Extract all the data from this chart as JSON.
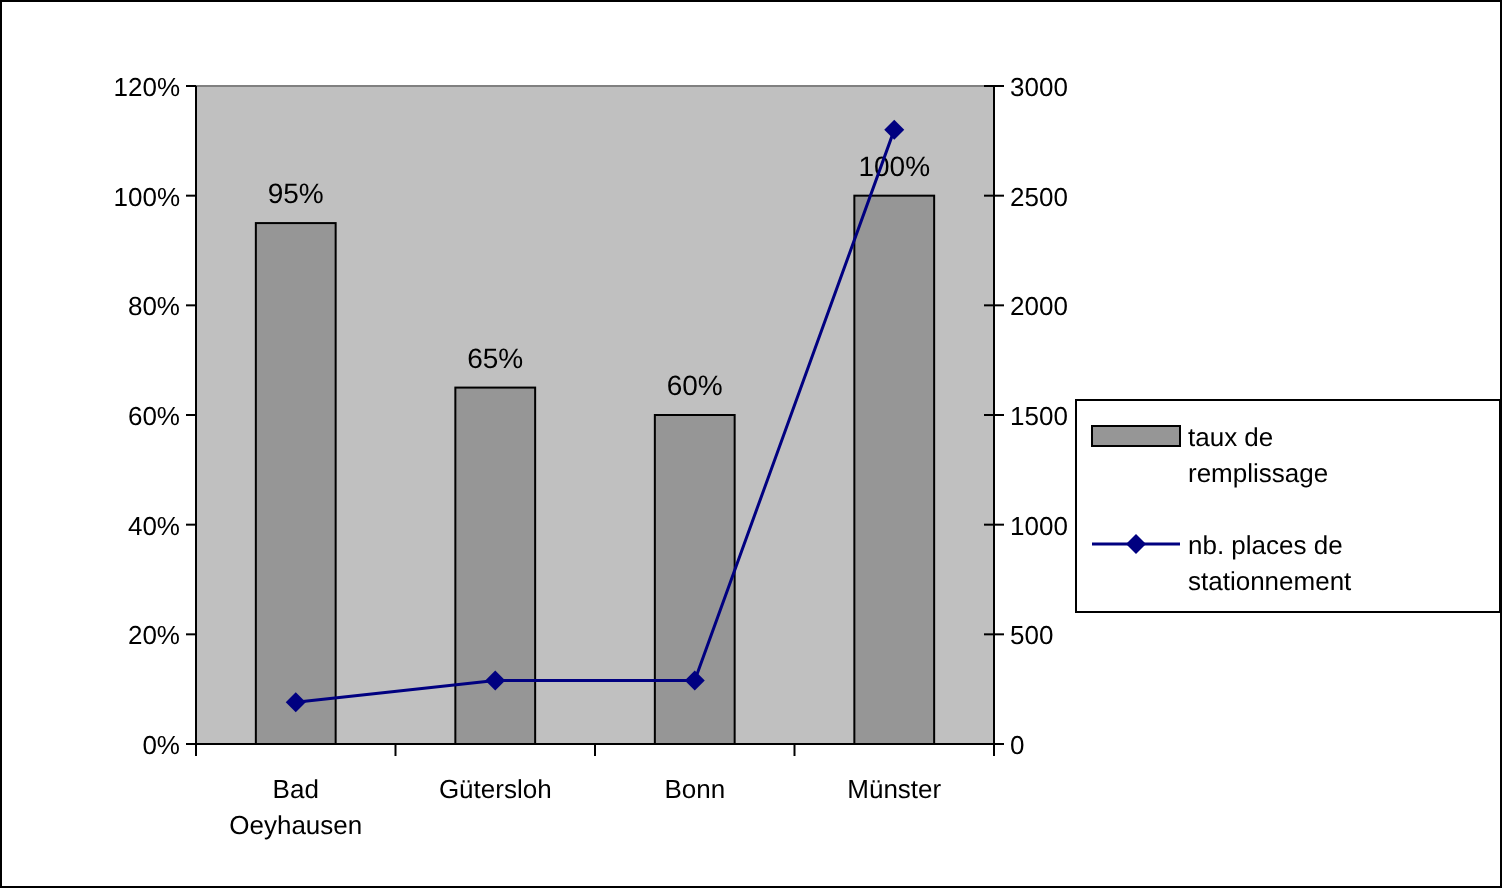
{
  "chart_data": {
    "type": "bar",
    "categories": [
      "Bad Oeyhausen",
      "Gütersloh",
      "Bonn",
      "Münster"
    ],
    "series": [
      {
        "name": "taux de remplissage",
        "color": "#969696",
        "values": [
          95,
          65,
          60,
          100
        ],
        "value_labels": [
          "95%",
          "65%",
          "60%",
          "100%"
        ]
      },
      {
        "name": "nb. places de stationnement",
        "type": "line",
        "axis": "y2",
        "color": "#000080",
        "values": [
          190,
          290,
          290,
          2800
        ],
        "marker": "diamond"
      }
    ],
    "ylim": [
      0,
      120
    ],
    "yticks": [
      {
        "value": 0,
        "label": "0%"
      },
      {
        "value": 20,
        "label": "20%"
      },
      {
        "value": 40,
        "label": "40%"
      },
      {
        "value": 60,
        "label": "60%"
      },
      {
        "value": 80,
        "label": "80%"
      },
      {
        "value": 100,
        "label": "100%"
      },
      {
        "value": 120,
        "label": "120%"
      }
    ],
    "y2lim": [
      0,
      3000
    ],
    "y2ticks": [
      0,
      500,
      1000,
      1500,
      2000,
      2500,
      3000
    ],
    "legend": "right",
    "grid": false
  }
}
